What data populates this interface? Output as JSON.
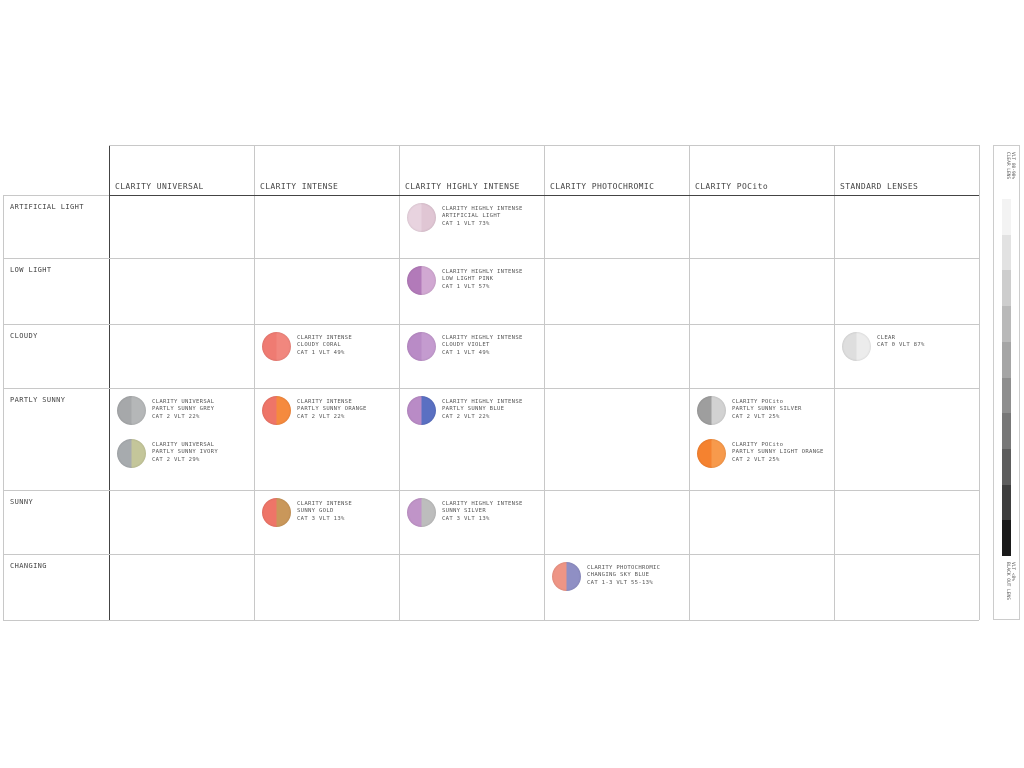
{
  "columns": [
    "CLARITY UNIVERSAL",
    "CLARITY INTENSE",
    "CLARITY HIGHLY INTENSE",
    "CLARITY PHOTOCHROMIC",
    "CLARITY POCito",
    "STANDARD LENSES"
  ],
  "rows": [
    "ARTIFICIAL LIGHT",
    "LOW LIGHT",
    "CLOUDY",
    "PARTLY SUNNY",
    "SUNNY",
    "CHANGING"
  ],
  "lenses": [
    {
      "row": 0,
      "col": 2,
      "line1": "CLARITY HIGHLY INTENSE",
      "line2": "ARTIFICIAL LIGHT",
      "line3": "CAT 1  VLT 73%",
      "colors": [
        "#e8d3df",
        "#e0c6d4"
      ]
    },
    {
      "row": 1,
      "col": 2,
      "line1": "CLARITY HIGHLY INTENSE",
      "line2": "LOW LIGHT PINK",
      "line3": "CAT 1  VLT 57%",
      "colors": [
        "#b27ab9",
        "#d1a8d2"
      ]
    },
    {
      "row": 2,
      "col": 1,
      "line1": "CLARITY INTENSE",
      "line2": "CLOUDY CORAL",
      "line3": "CAT 1  VLT 49%",
      "colors": [
        "#ef7b72",
        "#f1877e"
      ]
    },
    {
      "row": 2,
      "col": 2,
      "line1": "CLARITY HIGHLY INTENSE",
      "line2": "CLOUDY VIOLET",
      "line3": "CAT 1  VLT 49%",
      "colors": [
        "#b98bc6",
        "#c49bcf"
      ]
    },
    {
      "row": 2,
      "col": 5,
      "line1": "CLEAR",
      "line2": "",
      "line3": "CAT 0  VLT 87%",
      "colors": [
        "#dedede",
        "#ececec"
      ]
    },
    {
      "row": 3,
      "col": 0,
      "line1": "CLARITY UNIVERSAL",
      "line2": "PARTLY SUNNY GREY",
      "line3": "CAT 2  VLT 22%",
      "colors": [
        "#a6a8aa",
        "#b5b7b8"
      ]
    },
    {
      "row": 3,
      "col": 0,
      "line1": "CLARITY UNIVERSAL",
      "line2": "PARTLY SUNNY IVORY",
      "line3": "CAT 2  VLT 29%",
      "colors": [
        "#a7abae",
        "#c4c69a"
      ]
    },
    {
      "row": 3,
      "col": 1,
      "line1": "CLARITY INTENSE",
      "line2": "PARTLY SUNNY ORANGE",
      "line3": "CAT 2  VLT 22%",
      "colors": [
        "#ee7568",
        "#f58a3e"
      ]
    },
    {
      "row": 3,
      "col": 2,
      "line1": "CLARITY HIGHLY INTENSE",
      "line2": "PARTLY SUNNY BLUE",
      "line3": "CAT 2  VLT 22%",
      "colors": [
        "#b98bc6",
        "#5a70c2"
      ]
    },
    {
      "row": 3,
      "col": 4,
      "line1": "CLARITY POCito",
      "line2": "PARTLY SUNNY SILVER",
      "line3": "CAT 2  VLT 25%",
      "colors": [
        "#9e9e9e",
        "#d2d2d2"
      ]
    },
    {
      "row": 3,
      "col": 4,
      "line1": "CLARITY POCito",
      "line2": "PARTLY SUNNY LIGHT ORANGE",
      "line3": "CAT 2  VLT 25%",
      "colors": [
        "#f5822f",
        "#f79a4c"
      ]
    },
    {
      "row": 4,
      "col": 1,
      "line1": "CLARITY INTENSE",
      "line2": "SUNNY GOLD",
      "line3": "CAT 3  VLT 13%",
      "colors": [
        "#ee7568",
        "#c9975a"
      ]
    },
    {
      "row": 4,
      "col": 2,
      "line1": "CLARITY HIGHLY INTENSE",
      "line2": "SUNNY SILVER",
      "line3": "CAT 3  VLT 13%",
      "colors": [
        "#c094c8",
        "#bdbdbd"
      ]
    },
    {
      "row": 5,
      "col": 3,
      "line1": "CLARITY PHOTOCHROMIC",
      "line2": "CHANGING SKY BLUE",
      "line3": "CAT 1-3 VLT 55-13%",
      "colors": [
        "#ee9585",
        "#8f8fc4"
      ]
    }
  ],
  "scale": {
    "top_label_1": "VLT 80-90%",
    "top_label_2": "CLEAR LENS",
    "bottom_label_1": "VLT <8%",
    "bottom_label_2": "BLACK OUT LENS",
    "steps": [
      "#f3f3f3",
      "#e2e2e2",
      "#cdcdcd",
      "#b9b9b9",
      "#a5a5a5",
      "#8e8e8e",
      "#777777",
      "#5d5d5d",
      "#3e3e3e",
      "#1a1a1a"
    ]
  }
}
